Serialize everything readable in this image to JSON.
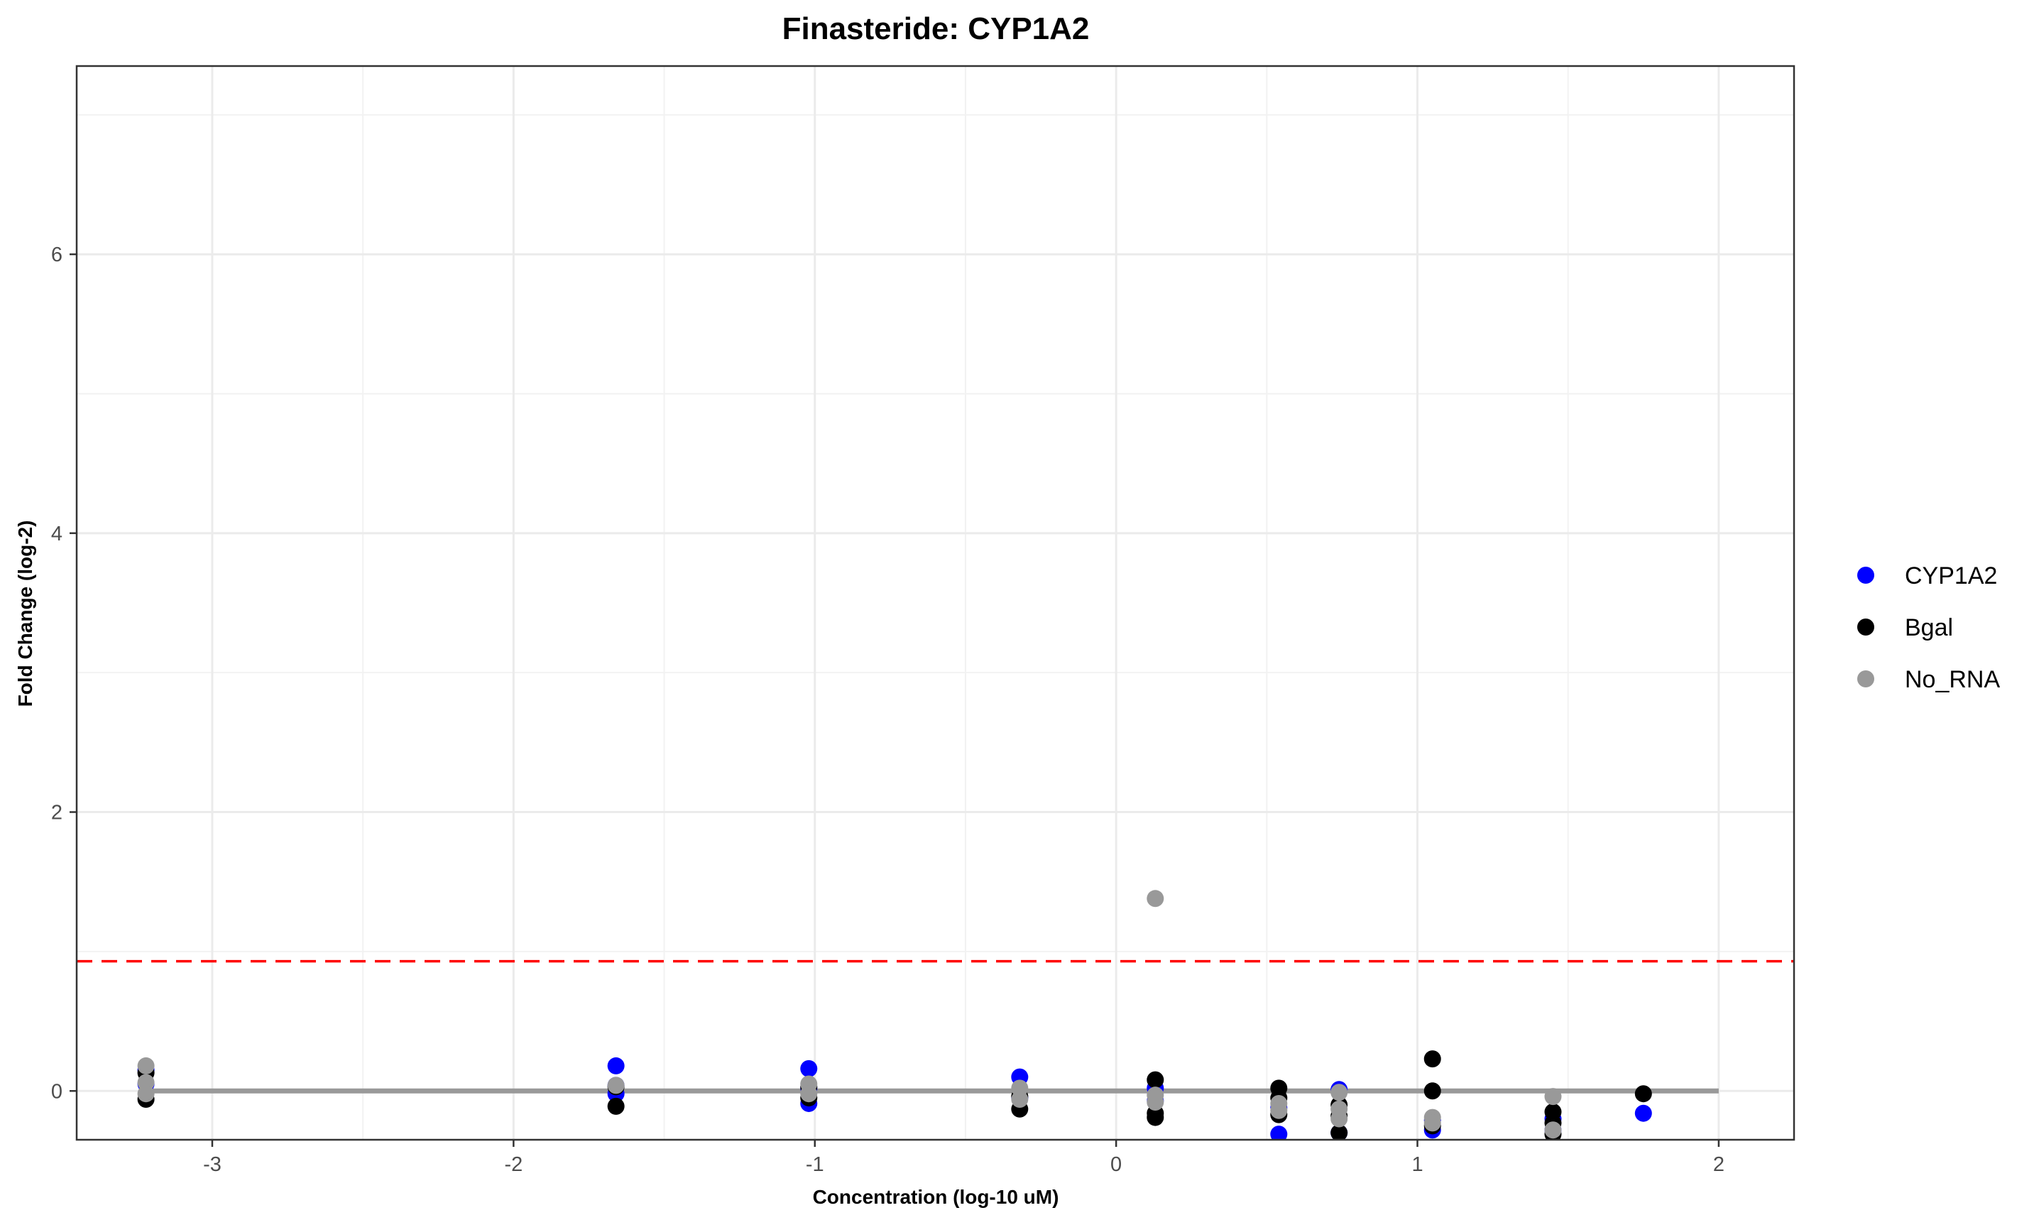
{
  "chart_data": {
    "type": "scatter",
    "title": "Finasteride: CYP1A2",
    "xlabel": "Concentration (log-10 uM)",
    "ylabel": "Fold Change (log-2)",
    "xlim": [
      -3.45,
      2.25
    ],
    "ylim": [
      -0.35,
      7.35
    ],
    "x_ticks": [
      -3,
      -2,
      -1,
      0,
      1,
      2
    ],
    "x_tick_labels": [
      "-3",
      "-2",
      "-1",
      "0",
      "1",
      "2"
    ],
    "y_ticks": [
      0,
      2,
      4,
      6
    ],
    "y_tick_labels": [
      "0",
      "2",
      "4",
      "6"
    ],
    "grid": true,
    "legend_position": "right",
    "threshold_line": {
      "y": 0.93,
      "color": "#ff0000",
      "style": "dashed"
    },
    "fit_line": {
      "x": [
        -3.22,
        2.0
      ],
      "y": [
        0,
        0
      ],
      "color": "#999999"
    },
    "series": [
      {
        "name": "CYP1A2",
        "color": "#0000ff",
        "points": [
          [
            -3.22,
            0.15
          ],
          [
            -3.22,
            0.05
          ],
          [
            -1.66,
            0.18
          ],
          [
            -1.66,
            -0.02
          ],
          [
            -1.66,
            0.04
          ],
          [
            -1.02,
            0.16
          ],
          [
            -1.02,
            -0.09
          ],
          [
            -1.02,
            0.02
          ],
          [
            -0.32,
            0.1
          ],
          [
            -0.32,
            -0.05
          ],
          [
            0.13,
            -0.07
          ],
          [
            0.13,
            0.02
          ],
          [
            0.54,
            -0.31
          ],
          [
            0.54,
            -0.12
          ],
          [
            0.74,
            0.01
          ],
          [
            0.74,
            -0.3
          ],
          [
            1.05,
            -0.28
          ],
          [
            1.05,
            -0.21
          ],
          [
            1.45,
            -0.28
          ],
          [
            1.45,
            -0.2
          ],
          [
            1.75,
            -0.16
          ]
        ]
      },
      {
        "name": "Bgal",
        "color": "#000000",
        "points": [
          [
            -3.22,
            -0.06
          ],
          [
            -3.22,
            0.13
          ],
          [
            -1.66,
            -0.11
          ],
          [
            -1.66,
            0.03
          ],
          [
            -1.02,
            -0.05
          ],
          [
            -1.02,
            0.03
          ],
          [
            -0.32,
            -0.13
          ],
          [
            -0.32,
            -0.04
          ],
          [
            0.13,
            0.08
          ],
          [
            0.13,
            -0.19
          ],
          [
            0.13,
            -0.16
          ],
          [
            0.54,
            0.02
          ],
          [
            0.54,
            -0.17
          ],
          [
            0.54,
            -0.05
          ],
          [
            0.74,
            -0.1
          ],
          [
            0.74,
            -0.3
          ],
          [
            0.74,
            -0.18
          ],
          [
            1.05,
            0.23
          ],
          [
            1.05,
            0.0
          ],
          [
            1.05,
            -0.25
          ],
          [
            1.45,
            -0.15
          ],
          [
            1.45,
            -0.23
          ],
          [
            1.45,
            -0.31
          ],
          [
            1.75,
            -0.02
          ]
        ]
      },
      {
        "name": "No_RNA",
        "color": "#999999",
        "points": [
          [
            -3.22,
            0.18
          ],
          [
            -3.22,
            0.06
          ],
          [
            -3.22,
            -0.02
          ],
          [
            -1.66,
            0.04
          ],
          [
            -1.02,
            0.05
          ],
          [
            -1.02,
            -0.02
          ],
          [
            -0.32,
            0.02
          ],
          [
            -0.32,
            -0.06
          ],
          [
            0.13,
            1.38
          ],
          [
            0.13,
            -0.03
          ],
          [
            0.13,
            -0.08
          ],
          [
            0.54,
            -0.09
          ],
          [
            0.54,
            -0.14
          ],
          [
            0.74,
            -0.01
          ],
          [
            0.74,
            -0.2
          ],
          [
            0.74,
            -0.13
          ],
          [
            1.05,
            -0.19
          ],
          [
            1.05,
            -0.23
          ],
          [
            1.45,
            -0.04
          ],
          [
            1.45,
            -0.28
          ]
        ]
      }
    ]
  }
}
